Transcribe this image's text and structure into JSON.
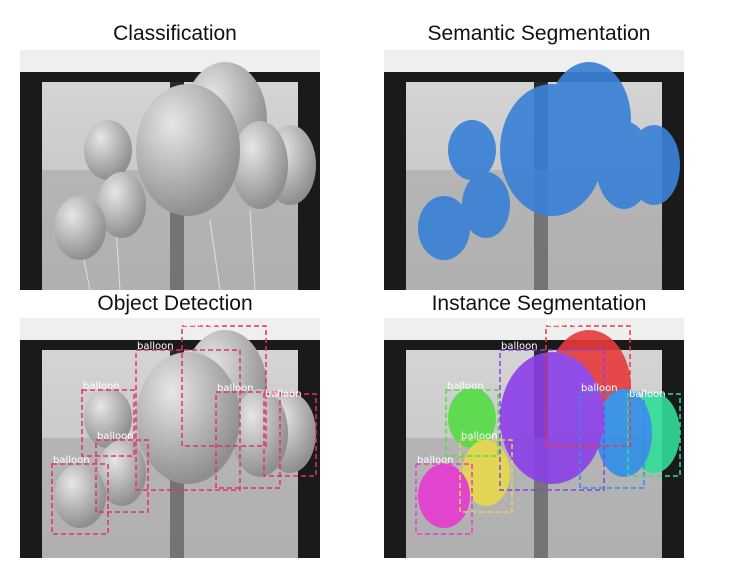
{
  "panels": [
    {
      "id": "classification",
      "title": "Classification"
    },
    {
      "id": "semantic",
      "title": "Semantic Segmentation"
    },
    {
      "id": "detection",
      "title": "Object Detection"
    },
    {
      "id": "instance",
      "title": "Instance Segmentation"
    }
  ],
  "object_label": "balloon",
  "colors": {
    "semantic_fill": "#3b82d6",
    "detection_box": "#e03366",
    "instance": [
      "#e83a3a",
      "#8b3fe8",
      "#55dd44",
      "#2f8ee8",
      "#33dd99",
      "#e8d84a",
      "#e83ad0"
    ]
  }
}
